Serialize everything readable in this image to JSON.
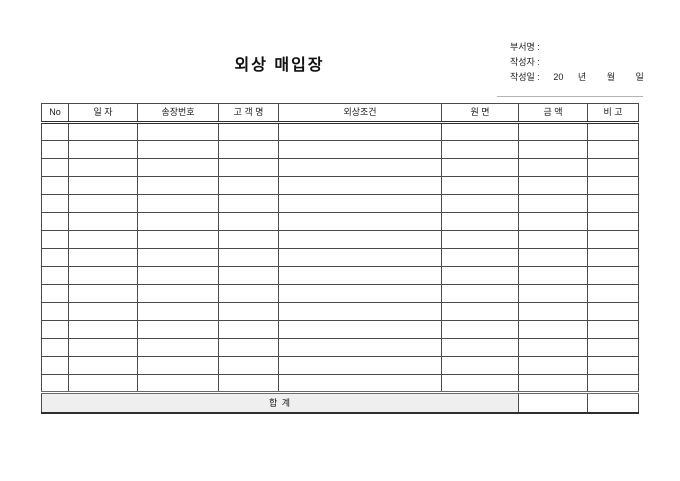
{
  "page": {
    "title": "외상 매입장"
  },
  "info": {
    "department_label": "부서명 :",
    "department_value": "",
    "writer_label": "작성자 :",
    "writer_value": "",
    "date_label": "작성일 :",
    "date_century": "20",
    "date_year_suffix": "년",
    "date_month_suffix": "월",
    "date_day_suffix": "일"
  },
  "table": {
    "columns": [
      "No",
      "일 자",
      "송장번호",
      "고 객 명",
      "외상조건",
      "원 면",
      "금 액",
      "비 고"
    ],
    "rows": [
      [
        "",
        "",
        "",
        "",
        "",
        "",
        "",
        ""
      ],
      [
        "",
        "",
        "",
        "",
        "",
        "",
        "",
        ""
      ],
      [
        "",
        "",
        "",
        "",
        "",
        "",
        "",
        ""
      ],
      [
        "",
        "",
        "",
        "",
        "",
        "",
        "",
        ""
      ],
      [
        "",
        "",
        "",
        "",
        "",
        "",
        "",
        ""
      ],
      [
        "",
        "",
        "",
        "",
        "",
        "",
        "",
        ""
      ],
      [
        "",
        "",
        "",
        "",
        "",
        "",
        "",
        ""
      ],
      [
        "",
        "",
        "",
        "",
        "",
        "",
        "",
        ""
      ],
      [
        "",
        "",
        "",
        "",
        "",
        "",
        "",
        ""
      ],
      [
        "",
        "",
        "",
        "",
        "",
        "",
        "",
        ""
      ],
      [
        "",
        "",
        "",
        "",
        "",
        "",
        "",
        ""
      ],
      [
        "",
        "",
        "",
        "",
        "",
        "",
        "",
        ""
      ],
      [
        "",
        "",
        "",
        "",
        "",
        "",
        "",
        ""
      ],
      [
        "",
        "",
        "",
        "",
        "",
        "",
        "",
        ""
      ],
      [
        "",
        "",
        "",
        "",
        "",
        "",
        "",
        ""
      ]
    ],
    "total": {
      "label": "합  계",
      "amount": "",
      "note": ""
    }
  }
}
